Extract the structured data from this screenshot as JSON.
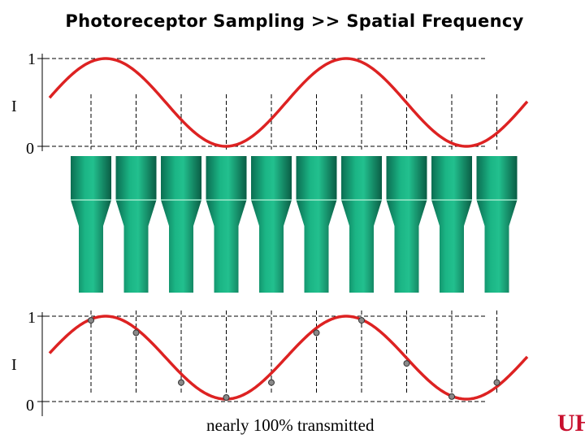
{
  "title": "Photoreceptor Sampling >> Spatial Frequency",
  "top_plot": {
    "y_label": "I",
    "tick_max": "1",
    "tick_min": "0"
  },
  "bottom_plot": {
    "y_label": "I",
    "tick_max": "1",
    "tick_min": "0"
  },
  "caption": "nearly 100% transmitted",
  "logo_text": "UH",
  "colors": {
    "wave": "#dd2222",
    "cone": "#18a07a",
    "cone_dark": "#0a6e50",
    "sample_dot": "#8a8a8a",
    "logo": "#c8102e"
  },
  "receptor_count": 10,
  "sample_levels": [
    0.95,
    0.8,
    0.2,
    0.02,
    0.2,
    0.8,
    0.95,
    0.43,
    0.03,
    0.2
  ]
}
